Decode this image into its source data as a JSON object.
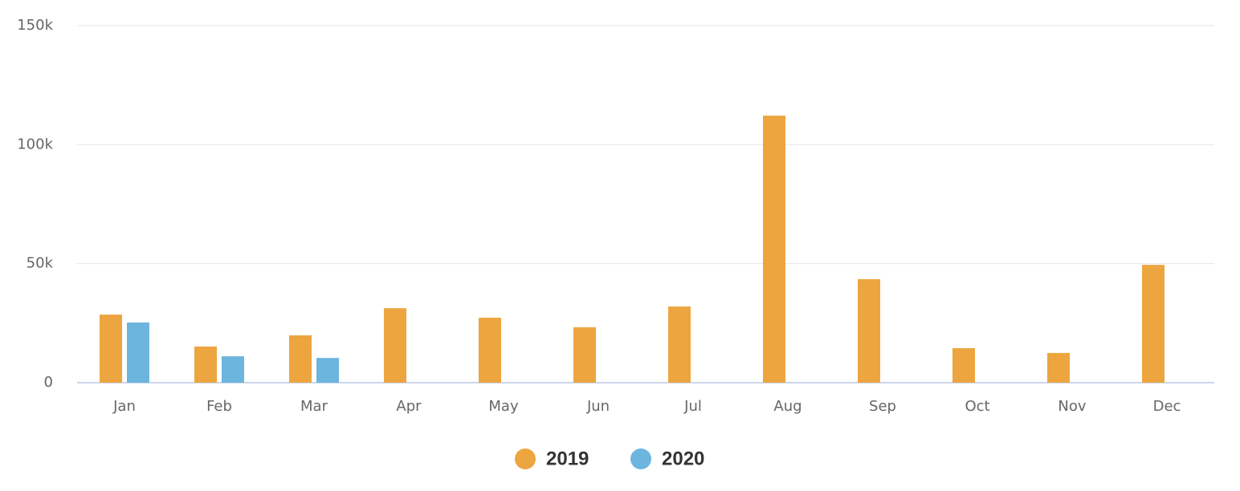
{
  "chart_data": {
    "type": "bar",
    "categories": [
      "Jan",
      "Feb",
      "Mar",
      "Apr",
      "May",
      "Jun",
      "Jul",
      "Aug",
      "Sep",
      "Oct",
      "Nov",
      "Dec"
    ],
    "series": [
      {
        "name": "2019",
        "color": "#eda540",
        "values": [
          28600,
          15200,
          19900,
          31300,
          27300,
          23300,
          32000,
          112200,
          43500,
          14500,
          12500,
          49500
        ]
      },
      {
        "name": "2020",
        "color": "#6cb5df",
        "values": [
          25300,
          11100,
          10400,
          null,
          null,
          null,
          null,
          null,
          null,
          null,
          null,
          null
        ]
      }
    ],
    "ylim": [
      0,
      150000
    ],
    "yticks": [
      0,
      {
        "value": 50000,
        "label": "50k"
      },
      {
        "value": 100000,
        "label": "100k"
      },
      {
        "value": 150000,
        "label": "150k"
      }
    ],
    "grid": true,
    "legend": "bottom"
  }
}
